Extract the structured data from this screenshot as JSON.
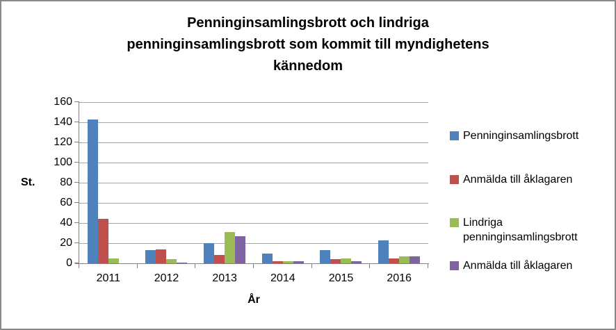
{
  "window": {
    "background": "#FFFFFF",
    "border_color": "#898989"
  },
  "colors": {
    "gridline": "#A6A6A6",
    "axis": "#808080",
    "text": "#000000"
  },
  "chart_data": {
    "type": "bar",
    "title": "Penninginsamlingsbrott och lindriga penninginsamlingsbrott som kommit till myndighetens kännedom",
    "title_lines": [
      "Penninginsamlingsbrott och lindriga",
      "penninginsamlingsbrott som kommit till myndighetens",
      "kännedom"
    ],
    "xlabel": "År",
    "ylabel": "St.",
    "categories": [
      "2011",
      "2012",
      "2013",
      "2014",
      "2015",
      "2016"
    ],
    "series": [
      {
        "name": "Penninginsamlingsbrott",
        "color": "#4F81BD",
        "values": [
          143,
          13,
          20,
          10,
          13,
          23
        ]
      },
      {
        "name": "Anmälda till åklagaren",
        "color": "#C0504D",
        "values": [
          44,
          14,
          8,
          2,
          4,
          5
        ]
      },
      {
        "name": "Lindriga penninginsamlingsbrott",
        "color": "#9BBB59",
        "values": [
          5,
          4,
          31,
          2,
          5,
          7
        ]
      },
      {
        "name": "Anmälda till åklagaren",
        "color": "#8064A2",
        "values": [
          0,
          1,
          27,
          2,
          2,
          7
        ]
      }
    ],
    "ylim": [
      0,
      160
    ],
    "ytick_step": 20,
    "yticks": [
      0,
      20,
      40,
      60,
      80,
      100,
      120,
      140,
      160
    ],
    "grid": true,
    "legend_position": "right"
  }
}
